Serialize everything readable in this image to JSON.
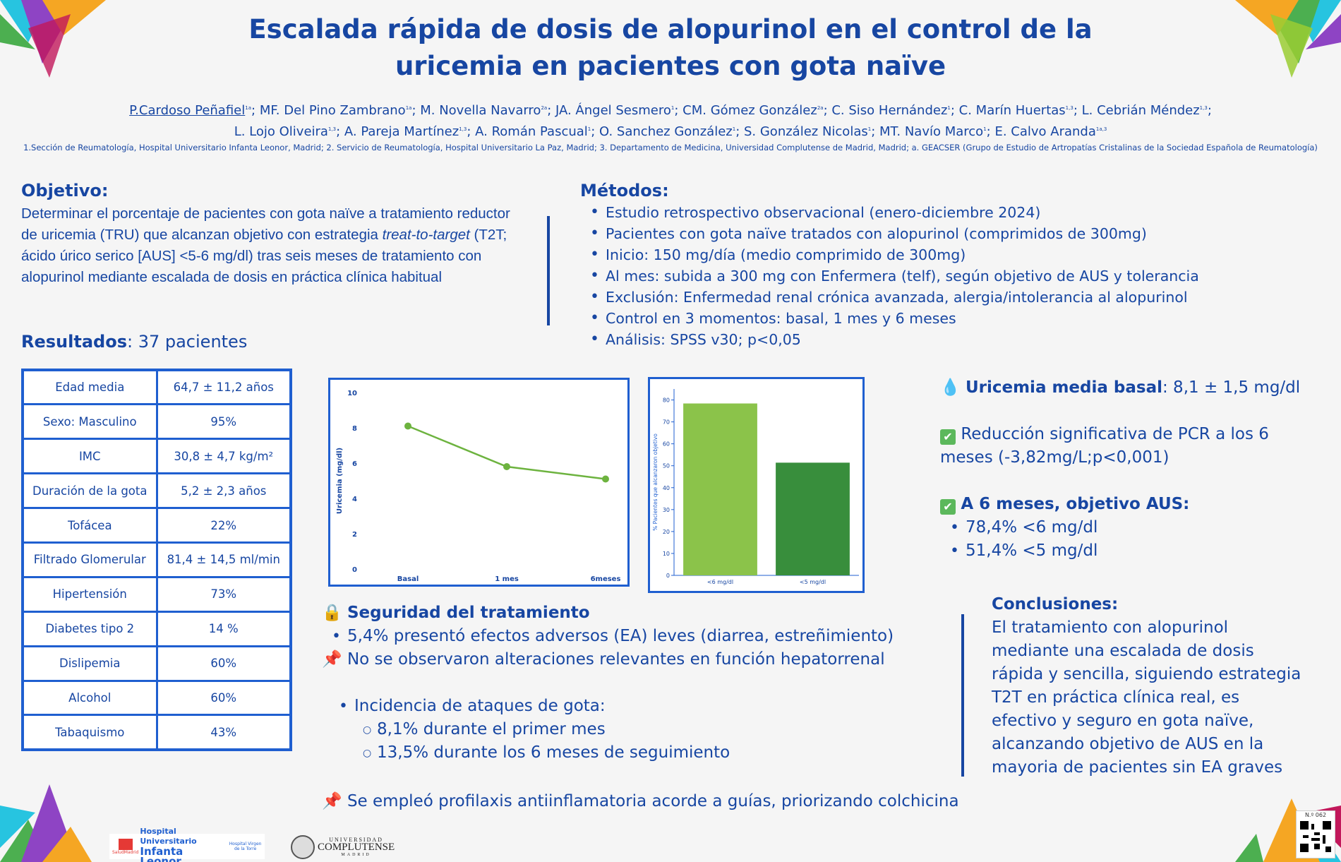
{
  "title_line1": "Escalada rápida de dosis de alopurinol en el control de la",
  "title_line2": "uricemia en pacientes con gota naïve",
  "authors_line1": [
    {
      "name": "P.Cardoso Peñafiel",
      "sup": "1a"
    },
    {
      "name": "MF. Del Pino Zambrano",
      "sup": "1a"
    },
    {
      "name": "M. Novella Navarro",
      "sup": "2a"
    },
    {
      "name": "JA. Ángel Sesmero",
      "sup": "1"
    },
    {
      "name": "CM. Gómez González",
      "sup": "2a"
    },
    {
      "name": "C. Siso Hernández",
      "sup": "1"
    },
    {
      "name": "C. Marín Huertas",
      "sup": "1,3"
    },
    {
      "name": "L. Cebrián Méndez",
      "sup": "1,3"
    }
  ],
  "authors_line2": [
    {
      "name": "L. Lojo Oliveira",
      "sup": "1,3"
    },
    {
      "name": "A. Pareja Martínez",
      "sup": "1,3"
    },
    {
      "name": "A. Román Pascual",
      "sup": "1"
    },
    {
      "name": "O. Sanchez González",
      "sup": "1"
    },
    {
      "name": "S. González Nicolas",
      "sup": "1"
    },
    {
      "name": "MT. Navío Marco",
      "sup": "1"
    },
    {
      "name": "E. Calvo Aranda",
      "sup": "1a,3"
    }
  ],
  "affiliations": "1.Sección de Reumatología, Hospital Universitario Infanta Leonor, Madrid; 2. Servicio de Reumatología, Hospital Universitario La Paz, Madrid; 3. Departamento de Medicina, Universidad Complutense de Madrid, Madrid; a. GEACSER (Grupo de Estudio de Artropatías Cristalinas de la Sociedad Española de Reumatología)",
  "objetivo": {
    "heading": "Objetivo:",
    "text_part1": "Determinar el porcentaje de pacientes con gota naïve a tratamiento reductor de uricemia (TRU) que alcanzan objetivo con estrategia ",
    "text_italic": "treat-to-target",
    "text_part2": " (T2T; ácido úrico serico [AUS] <5-6 mg/dl)  tras seis meses de tratamiento con alopurinol mediante escalada de dosis en práctica clínica habitual"
  },
  "metodos": {
    "heading": "Métodos:",
    "items": [
      "Estudio retrospectivo observacional (enero-diciembre 2024)",
      "Pacientes con gota naïve tratados con alopurinol (comprimidos de 300mg)",
      "Inicio: 150 mg/día (medio comprimido de 300mg)",
      "Al mes: subida a 300 mg con Enfermera (telf), según objetivo de AUS y tolerancia",
      "Exclusión: Enfermedad renal crónica avanzada, alergia/intolerancia al alopurinol",
      "Control en 3 momentos: basal, 1 mes y 6 meses",
      "Análisis: SPSS v30; p<0,05"
    ]
  },
  "resultados": {
    "heading": "Resultados",
    "suffix": ": 37 pacientes"
  },
  "table": [
    {
      "label": "Edad media",
      "value": "64,7 ± 11,2 años"
    },
    {
      "label": "Sexo: Masculino",
      "value": "95%"
    },
    {
      "label": "IMC",
      "value": "30,8 ± 4,7 kg/m²"
    },
    {
      "label": "Duración de la gota",
      "value": "5,2 ± 2,3 años"
    },
    {
      "label": "Tofácea",
      "value": "22%"
    },
    {
      "label": "Filtrado Glomerular",
      "value": "81,4 ± 14,5 ml/min"
    },
    {
      "label": "Hipertensión",
      "value": "73%"
    },
    {
      "label": "Diabetes tipo 2",
      "value": "14 %"
    },
    {
      "label": "Dislipemia",
      "value": "60%"
    },
    {
      "label": "Alcohol",
      "value": "60%"
    },
    {
      "label": "Tabaquismo",
      "value": "43%"
    }
  ],
  "chart_data": [
    {
      "type": "line",
      "categories": [
        "Basal",
        "1 mes",
        "6meses"
      ],
      "values": [
        8.1,
        5.8,
        5.1
      ],
      "ylabel": "Uricemia (mg/dl)",
      "ylim": [
        0,
        10
      ],
      "yticks": [
        "0",
        "2",
        "4",
        "6",
        "8",
        "10"
      ],
      "color": "#6db33f",
      "grid": false
    },
    {
      "type": "bar",
      "categories": [
        "<6 mg/dl",
        "<5 mg/dl"
      ],
      "values": [
        78.4,
        51.4
      ],
      "ylabel": "% Pacientes que alcanzaron objetivo",
      "ylim": [
        0,
        85
      ],
      "yticks": [
        "0",
        "10",
        "20",
        "30",
        "40",
        "50",
        "60",
        "70",
        "80"
      ],
      "colors": [
        "#8bc34a",
        "#388e3c"
      ],
      "grid": false
    }
  ],
  "right_results": {
    "uricemia_label": "Uricemia media basal",
    "uricemia_value": ": 8,1 ± 1,5 mg/dl",
    "pcr_text": "Reducción significativa de PCR a los 6 meses (-3,82mg/L;p<0,001)",
    "aus_heading": "A 6 meses, objetivo AUS:",
    "aus_items": [
      "78,4% <6 mg/dl",
      "51,4% <5 mg/dl"
    ]
  },
  "seguridad": {
    "heading": "Seguridad del tratamiento",
    "item1": "5,4%  presentó efectos adversos (EA) leves (diarrea, estreñimiento)",
    "item2": "No se observaron alteraciones relevantes en función hepatorrenal",
    "incidencia": "Incidencia de ataques de gota:",
    "inc_items": [
      "8,1% durante el primer mes",
      "13,5% durante los 6 meses de seguimiento"
    ],
    "profilaxis": "Se empleó profilaxis antiinflamatoria acorde a guías, priorizando colchicina"
  },
  "conclusiones": {
    "heading": "Conclusiones:",
    "text": "El tratamiento con alopurinol mediante una escalada de dosis rápida y sencilla, siguiendo estrategia T2T en práctica clínica real, es efectivo y seguro en gota naïve, alcanzando objetivo de AUS en la mayoria de pacientes sin EA graves"
  },
  "logos": {
    "hospital_line1": "Hospital Universitario",
    "hospital_line2": "Infanta Leonor",
    "hospital_sub": "SaludMadrid",
    "vegas": "Hospital Virgen de la Torre",
    "ucm_top": "UNIVERSIDAD",
    "ucm_main": "COMPLUTENSE",
    "ucm_bottom": "MADRID",
    "poster_number": "N.º 062"
  },
  "colors": {
    "primary": "#1746a2",
    "border": "#1f5fd0",
    "green_line": "#6db33f",
    "bar1": "#8bc34a",
    "bar2": "#388e3c"
  }
}
